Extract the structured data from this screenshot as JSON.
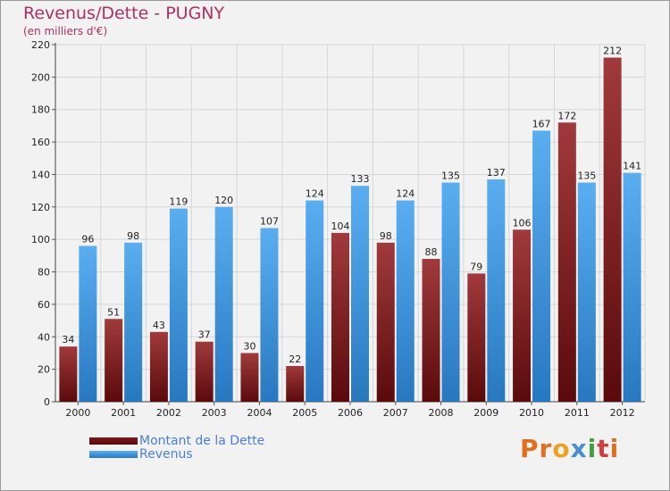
{
  "title": "Revenus/Dette - PUGNY",
  "subtitle": "(en milliers d'€)",
  "logo": "Proxiti",
  "colors": {
    "dette_light": "#a03a3c",
    "dette_dark": "#5a0a0c",
    "revenus_light": "#5aaef0",
    "revenus_dark": "#2878c0",
    "background": "#f2f2f2",
    "grid": "#d6d6d6"
  },
  "chart_data": {
    "type": "bar",
    "title": "Revenus/Dette - PUGNY",
    "subtitle": "(en milliers d'€)",
    "categories": [
      "2000",
      "2001",
      "2002",
      "2003",
      "2004",
      "2005",
      "2006",
      "2007",
      "2008",
      "2009",
      "2010",
      "2011",
      "2012"
    ],
    "series": [
      {
        "name": "Montant de la Dette",
        "values": [
          34,
          51,
          43,
          37,
          30,
          22,
          104,
          98,
          88,
          79,
          106,
          172,
          212
        ]
      },
      {
        "name": "Revenus",
        "values": [
          96,
          98,
          119,
          120,
          107,
          124,
          133,
          124,
          135,
          137,
          167,
          135,
          141
        ]
      }
    ],
    "ylim": [
      0,
      220
    ],
    "yticks": [
      0,
      20,
      40,
      60,
      80,
      100,
      120,
      140,
      160,
      180,
      200,
      220
    ],
    "grid": true,
    "legend": "bottom-left"
  }
}
